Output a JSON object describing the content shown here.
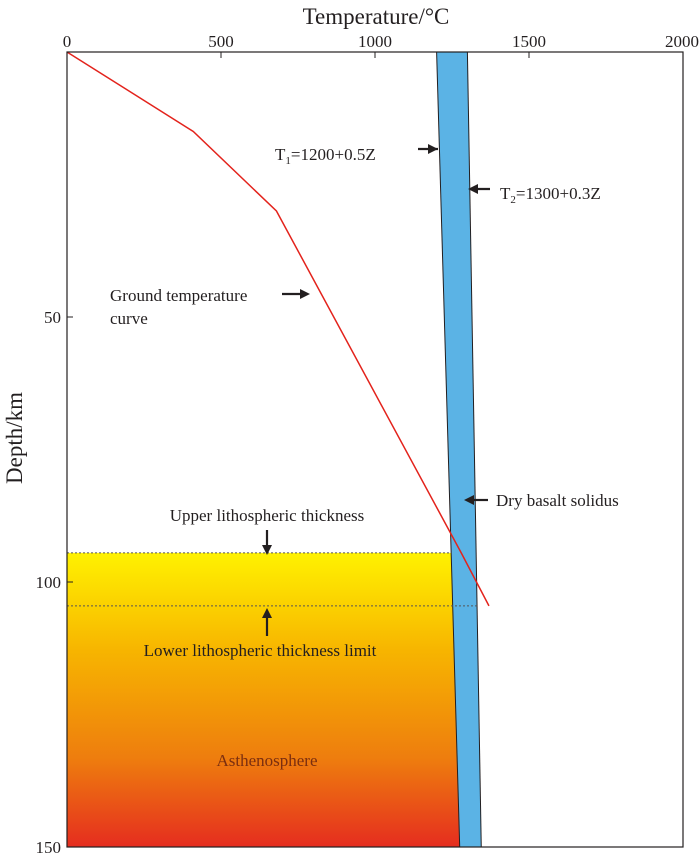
{
  "chart_data": {
    "type": "line",
    "title": "",
    "xlabel": "Temperature/°C",
    "ylabel": "Depth/km",
    "x_axis_position": "top",
    "y_axis_inverted": true,
    "xlim": [
      0,
      2000
    ],
    "ylim": [
      0,
      150
    ],
    "x_ticks": [
      0,
      500,
      1000,
      1500,
      2000
    ],
    "y_ticks": [
      50,
      100,
      150
    ],
    "y_zero_label": "0",
    "grid": false,
    "legend": "none",
    "series": [
      {
        "role": "geotherm",
        "color": "#e3231c",
        "points": [
          [
            0,
            0
          ],
          [
            410,
            15
          ],
          [
            680,
            30
          ],
          [
            1280,
            94.5
          ],
          [
            1370,
            104.5
          ]
        ]
      },
      {
        "role": "solidus_band_left",
        "color": "#231f20",
        "points": [
          [
            1200,
            0
          ],
          [
            1275,
            150
          ]
        ]
      },
      {
        "role": "solidus_band_right",
        "color": "#231f20",
        "points": [
          [
            1300,
            0
          ],
          [
            1345,
            150
          ]
        ]
      }
    ],
    "band": {
      "color": "#5bb3e5"
    },
    "layers": {
      "upper_depth": 94.5,
      "lower_depth": 104.5,
      "gradient_colors": [
        "#fff200",
        "#f7b500",
        "#ee7d0e",
        "#e52d1f"
      ]
    },
    "annotations": {
      "t1": {
        "base": "T",
        "sub": "1",
        "rest": "=1200+0.5Z"
      },
      "t2": {
        "base": "T",
        "sub": "2",
        "rest": "=1300+0.3Z"
      },
      "ground_line1": "Ground temperature",
      "ground_line2": "curve",
      "dry_basalt": "Dry basalt solidus",
      "upper": "Upper lithospheric thickness",
      "lower": "Lower lithospheric thickness limit",
      "asthenosphere": "Asthenosphere"
    }
  }
}
